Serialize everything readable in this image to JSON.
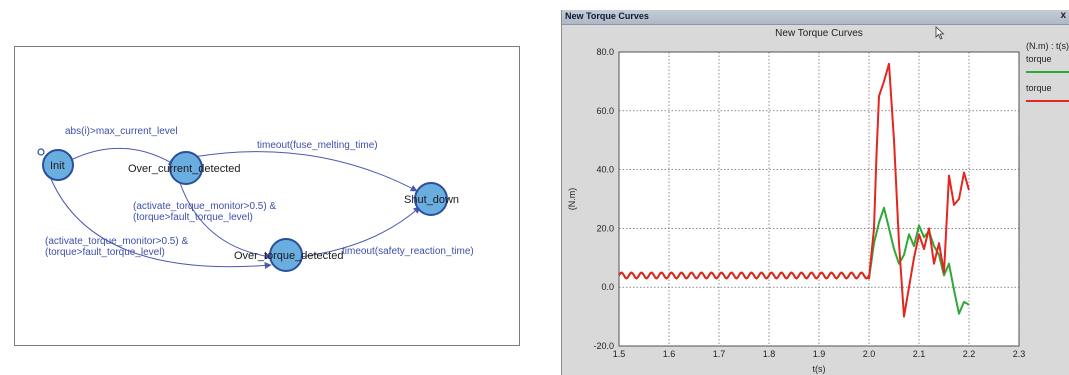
{
  "state_machine": {
    "states": [
      {
        "id": "init",
        "name": "Init"
      },
      {
        "id": "oc",
        "name": "Over_current_detected"
      },
      {
        "id": "sd",
        "name": "Shut_down"
      },
      {
        "id": "ot",
        "name": "Over_torque_detected"
      }
    ],
    "transitions": {
      "init_to_oc": {
        "label": "abs(i)>max_current_level"
      },
      "oc_to_sd": {
        "label": "timeout(fuse_melting_time)"
      },
      "oc_to_ot": {
        "line1": "(activate_torque_monitor>0.5) &",
        "line2": "(torque>fault_torque_level)"
      },
      "init_to_ot": {
        "line1": "(activate_torque_monitor>0.5) &",
        "line2": "(torque>fault_torque_level)"
      },
      "ot_to_sd": {
        "label": "timeout(safety_reaction_time)"
      }
    },
    "colors": {
      "state_fill": "#6aaee0",
      "state_stroke": "#2a4f9c",
      "edge": "#4a58b0",
      "label": "#3e4fa8"
    }
  },
  "plot_window": {
    "title": "New Torque Curves",
    "close_glyph": "x",
    "icons": {
      "cursor": "mouse-pointer-icon"
    }
  },
  "chart_data": {
    "type": "line",
    "title": "New Torque Curves",
    "xlabel": "t(s)",
    "ylabel": "(N.m)",
    "xlim": [
      1.5,
      2.3
    ],
    "ylim": [
      -20,
      80
    ],
    "x_ticks": [
      "1.5",
      "1.6",
      "1.7",
      "1.8",
      "1.9",
      "2.0",
      "2.1",
      "2.2",
      "2.3"
    ],
    "y_ticks": [
      "-20.0",
      "0.0",
      "20.0",
      "40.0",
      "60.0",
      "80.0"
    ],
    "grid": true,
    "legend_title": "(N.m) : t(s)",
    "legend_position": "right",
    "series": [
      {
        "name": "torque",
        "color": "#2ea836",
        "x": [
          2.0,
          2.01,
          2.02,
          2.03,
          2.04,
          2.05,
          2.06,
          2.07,
          2.08,
          2.09,
          2.1,
          2.11,
          2.12,
          2.13,
          2.14,
          2.15,
          2.16,
          2.17,
          2.18,
          2.19,
          2.2
        ],
        "y": [
          3,
          15,
          22,
          27,
          20,
          13,
          8,
          11,
          18,
          14,
          21,
          17,
          19,
          14,
          11,
          4,
          8,
          -1,
          -9,
          -5,
          -6
        ]
      },
      {
        "name": "torque",
        "color": "#e3261f",
        "x": [
          2.0,
          2.01,
          2.015,
          2.02,
          2.03,
          2.04,
          2.05,
          2.06,
          2.07,
          2.08,
          2.09,
          2.1,
          2.11,
          2.12,
          2.13,
          2.14,
          2.15,
          2.16,
          2.17,
          2.18,
          2.19,
          2.2
        ],
        "y": [
          3,
          20,
          45,
          65,
          70,
          76,
          50,
          15,
          -10,
          0,
          10,
          18,
          13,
          20,
          8,
          15,
          5,
          38,
          28,
          30,
          39,
          33
        ]
      }
    ],
    "baseline": {
      "x_start": 1.5,
      "x_end": 2.0,
      "mean": 4,
      "amplitude": 1,
      "period": 0.02
    }
  }
}
